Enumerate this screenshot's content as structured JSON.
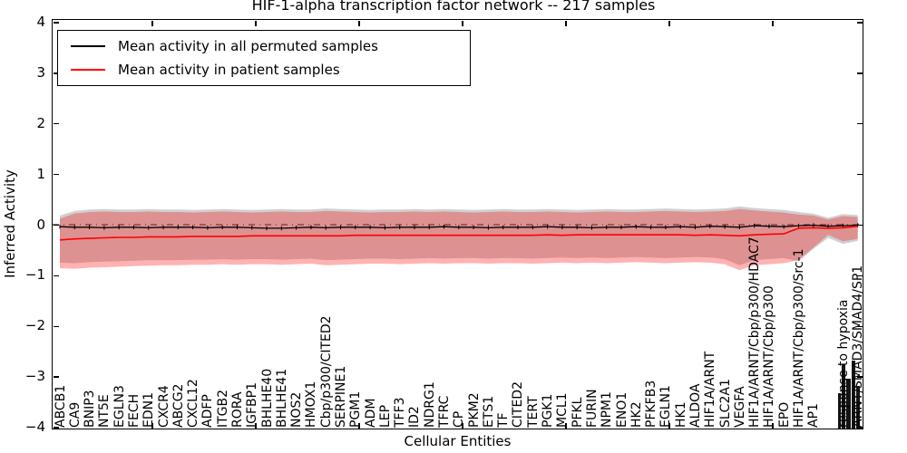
{
  "title": "HIF-1-alpha transcription factor network -- 217 samples",
  "axes": {
    "xlabel": "Cellular Entities",
    "ylabel": "Inferred Activity",
    "ytick_labels": [
      "4",
      "3",
      "2",
      "1",
      "0",
      "−1",
      "−2",
      "−3",
      "−4"
    ]
  },
  "legend": {
    "entries": [
      {
        "label": "Mean activity in all permuted samples",
        "color": "#000000"
      },
      {
        "label": "Mean activity in patient samples",
        "color": "#ff0000"
      }
    ]
  },
  "chart_data": {
    "type": "line",
    "title": "HIF-1-alpha transcription factor network -- 217 samples",
    "xlabel": "Cellular Entities",
    "ylabel": "Inferred Activity",
    "ylim": [
      -4,
      4
    ],
    "yticks": [
      4,
      3,
      2,
      1,
      0,
      -1,
      -2,
      -3,
      -4
    ],
    "grid": false,
    "legend_position": "upper left",
    "zero_line": true,
    "categories": [
      "ABCB1",
      "CA9",
      "BNIP3",
      "NT5E",
      "EGLN3",
      "FECH",
      "EDN1",
      "CXCR4",
      "ABCG2",
      "CXCL12",
      "ADFP",
      "ITGB2",
      "RORA",
      "IGFBP1",
      "BHLHE40",
      "BHLHE41",
      "NOS2",
      "HMOX1",
      "Cbp/p300/CITED2",
      "SERPINE1",
      "PGM1",
      "ADM",
      "LEP",
      "TFF3",
      "ID2",
      "NDRG1",
      "TFRC",
      "CP",
      "PKM2",
      "ETS1",
      "TF",
      "CITED2",
      "TERT",
      "PGK1",
      "MCL1",
      "PFKL",
      "FURIN",
      "NPM1",
      "ENO1",
      "HK2",
      "PFKFB3",
      "EGLN1",
      "HK1",
      "ALDOA",
      "HIF1A/ARNT",
      "SLC2A1",
      "VEGFA",
      "HIF1A/ARNT/Cbp/p300/HDAC7",
      "HIF1A/ARNT/Cbp/p300",
      "EPO",
      "HIF1A/ARNT/Cbp/p300/Src-1",
      "AP1",
      "",
      "response to hypoxia",
      "ARNT/SMAD3/SMAD4/SP1"
    ],
    "series": [
      {
        "name": "Mean activity in all permuted samples",
        "color": "#000000",
        "marker": "error-caps",
        "values": [
          -0.04,
          -0.05,
          -0.05,
          -0.06,
          -0.05,
          -0.05,
          -0.06,
          -0.05,
          -0.05,
          -0.05,
          -0.06,
          -0.05,
          -0.05,
          -0.06,
          -0.07,
          -0.07,
          -0.06,
          -0.05,
          -0.06,
          -0.05,
          -0.05,
          -0.05,
          -0.06,
          -0.05,
          -0.05,
          -0.05,
          -0.04,
          -0.05,
          -0.05,
          -0.06,
          -0.05,
          -0.05,
          -0.05,
          -0.04,
          -0.05,
          -0.05,
          -0.06,
          -0.05,
          -0.05,
          -0.04,
          -0.05,
          -0.05,
          -0.04,
          -0.05,
          -0.03,
          -0.04,
          -0.05,
          -0.02,
          -0.03,
          -0.04,
          -0.02,
          -0.01,
          -0.03,
          -0.02,
          -0.01
        ],
        "band": {
          "fill": "rgba(120,120,120,0.35)",
          "upper": [
            0.18,
            0.27,
            0.3,
            0.31,
            0.3,
            0.3,
            0.31,
            0.3,
            0.3,
            0.29,
            0.3,
            0.31,
            0.3,
            0.29,
            0.3,
            0.31,
            0.3,
            0.3,
            0.32,
            0.31,
            0.3,
            0.29,
            0.3,
            0.3,
            0.31,
            0.3,
            0.31,
            0.3,
            0.29,
            0.3,
            0.31,
            0.3,
            0.3,
            0.31,
            0.3,
            0.29,
            0.3,
            0.31,
            0.3,
            0.3,
            0.31,
            0.32,
            0.31,
            0.3,
            0.31,
            0.32,
            0.36,
            0.33,
            0.31,
            0.29,
            0.25,
            0.22,
            0.14,
            0.21,
            0.19
          ],
          "lower": [
            -0.75,
            -0.76,
            -0.74,
            -0.73,
            -0.72,
            -0.71,
            -0.7,
            -0.7,
            -0.7,
            -0.69,
            -0.69,
            -0.68,
            -0.69,
            -0.68,
            -0.68,
            -0.69,
            -0.68,
            -0.67,
            -0.7,
            -0.69,
            -0.68,
            -0.67,
            -0.67,
            -0.68,
            -0.67,
            -0.66,
            -0.67,
            -0.66,
            -0.66,
            -0.67,
            -0.66,
            -0.66,
            -0.67,
            -0.66,
            -0.65,
            -0.66,
            -0.65,
            -0.66,
            -0.65,
            -0.64,
            -0.65,
            -0.66,
            -0.65,
            -0.64,
            -0.65,
            -0.68,
            -0.8,
            -0.7,
            -0.68,
            -0.66,
            -0.72,
            -0.48,
            -0.26,
            -0.38,
            -0.32
          ]
        }
      },
      {
        "name": "Mean activity in patient samples",
        "color": "#ff0000",
        "marker": "none",
        "values": [
          -0.3,
          -0.28,
          -0.27,
          -0.26,
          -0.25,
          -0.25,
          -0.24,
          -0.24,
          -0.24,
          -0.23,
          -0.23,
          -0.23,
          -0.23,
          -0.22,
          -0.22,
          -0.22,
          -0.22,
          -0.22,
          -0.22,
          -0.22,
          -0.21,
          -0.21,
          -0.21,
          -0.21,
          -0.21,
          -0.21,
          -0.21,
          -0.21,
          -0.21,
          -0.21,
          -0.21,
          -0.21,
          -0.21,
          -0.2,
          -0.21,
          -0.2,
          -0.2,
          -0.2,
          -0.2,
          -0.2,
          -0.2,
          -0.2,
          -0.2,
          -0.21,
          -0.2,
          -0.21,
          -0.22,
          -0.2,
          -0.19,
          -0.18,
          -0.07,
          -0.06,
          -0.07,
          -0.06,
          -0.03
        ],
        "band": {
          "fill": "rgba(255,0,0,0.30)",
          "upper": [
            0.12,
            0.22,
            0.25,
            0.26,
            0.25,
            0.25,
            0.26,
            0.25,
            0.25,
            0.24,
            0.25,
            0.26,
            0.25,
            0.24,
            0.25,
            0.26,
            0.25,
            0.25,
            0.27,
            0.26,
            0.25,
            0.24,
            0.25,
            0.25,
            0.26,
            0.25,
            0.26,
            0.25,
            0.24,
            0.25,
            0.26,
            0.25,
            0.25,
            0.26,
            0.25,
            0.24,
            0.25,
            0.26,
            0.25,
            0.25,
            0.26,
            0.27,
            0.26,
            0.25,
            0.26,
            0.27,
            0.31,
            0.28,
            0.26,
            0.24,
            0.2,
            0.18,
            0.1,
            0.17,
            0.15
          ],
          "lower": [
            -0.86,
            -0.87,
            -0.85,
            -0.84,
            -0.83,
            -0.82,
            -0.81,
            -0.8,
            -0.8,
            -0.79,
            -0.79,
            -0.78,
            -0.79,
            -0.78,
            -0.78,
            -0.79,
            -0.78,
            -0.77,
            -0.8,
            -0.79,
            -0.78,
            -0.77,
            -0.77,
            -0.78,
            -0.77,
            -0.76,
            -0.77,
            -0.76,
            -0.76,
            -0.77,
            -0.76,
            -0.76,
            -0.77,
            -0.76,
            -0.75,
            -0.76,
            -0.75,
            -0.76,
            -0.75,
            -0.74,
            -0.75,
            -0.76,
            -0.75,
            -0.74,
            -0.75,
            -0.78,
            -0.9,
            -0.8,
            -0.78,
            -0.76,
            -0.7,
            -0.45,
            -0.2,
            -0.33,
            -0.28
          ]
        }
      }
    ]
  }
}
